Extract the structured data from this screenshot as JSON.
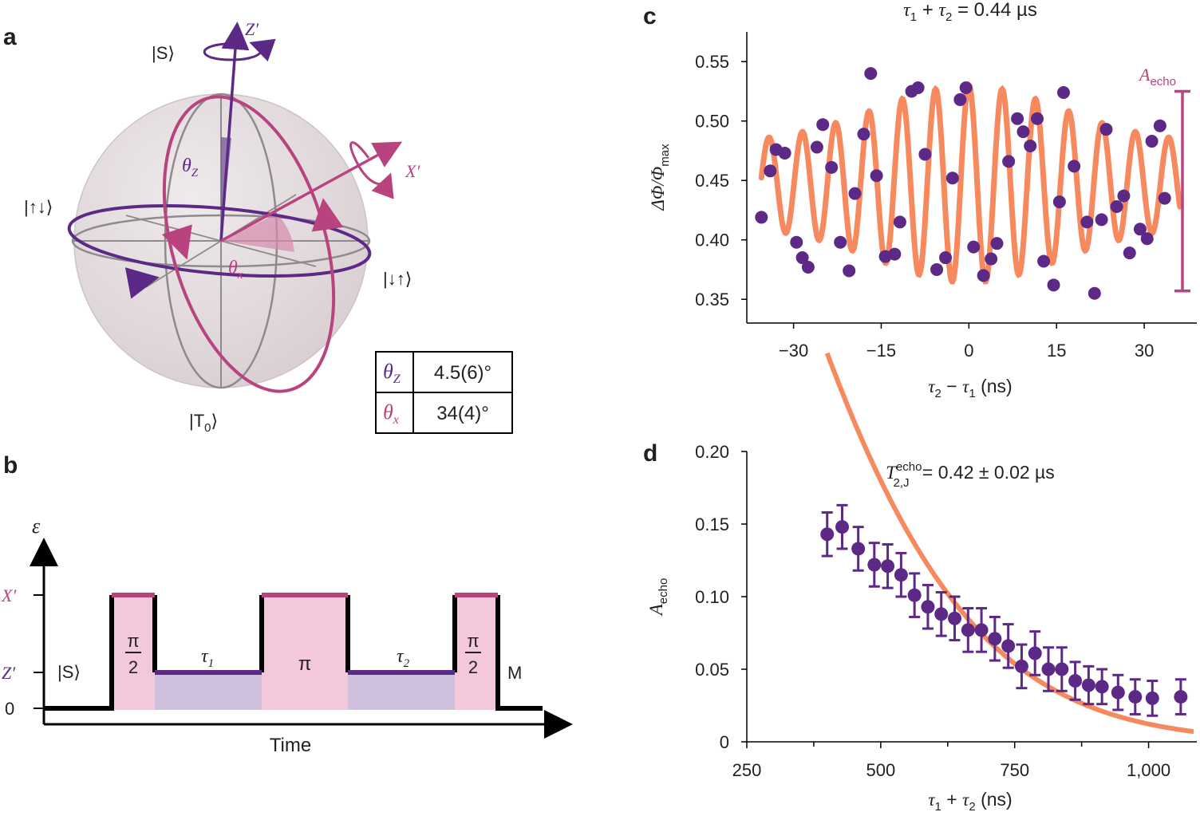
{
  "panels": {
    "a": "a",
    "b": "b",
    "c": "c",
    "d": "d"
  },
  "colors": {
    "purple": "#5c2a86",
    "magenta": "#b8437e",
    "orange": "#f7895e",
    "sphere": "#e2dadc",
    "pink_fill": "#f2c8da",
    "lilac_fill": "#cfc0dd"
  },
  "bloch": {
    "label_S": "|S⟩",
    "label_T0": "|T",
    "label_T0_sub": "0",
    "label_T0_end": "⟩",
    "label_updown": "|↑↓⟩",
    "label_downup": "|↓↑⟩",
    "axis_Z": "Z′",
    "axis_X": "X′",
    "theta_z_sym": "θ",
    "theta_z_sub": "Z",
    "theta_x_sym": "θ",
    "theta_x_sub": "x",
    "table": {
      "row1_sym": "θ",
      "row1_sub": "Z",
      "row1_value": "4.5(6)°",
      "row2_sym": "θ",
      "row2_sub": "x",
      "row2_value": "34(4)°"
    }
  },
  "pulse": {
    "ylabel": "ε",
    "xlabel": "Time",
    "level_X": "X′",
    "level_Z": "Z′",
    "level_0": "0",
    "init": "|S⟩",
    "measure": "M",
    "half_pi_num": "π",
    "half_pi_den": "2",
    "pi": "π",
    "tau1_sym": "τ",
    "tau1_sub": "1",
    "tau2_sym": "τ",
    "tau2_sub": "2"
  },
  "chart_data": [
    {
      "panel": "c",
      "type": "scatter",
      "title_parts": {
        "t1": "τ",
        "s1": "1",
        "plus": " + ",
        "t2": "τ",
        "s2": "2",
        "rest": " = 0.44 µs"
      },
      "xlabel_parts": {
        "t2": "τ",
        "s2": "2",
        "minus": " − ",
        "t1": "τ",
        "s1": "1",
        "unit": " (ns)"
      },
      "ylabel_parts": {
        "num": "ΔΦ/Φ",
        "sub": "max"
      },
      "xlim": [
        -38,
        39
      ],
      "ylim": [
        0.33,
        0.575
      ],
      "xticks": [
        -30,
        -15,
        0,
        15,
        30
      ],
      "xtick_labels": [
        "−30",
        "−15",
        "0",
        "15",
        "30"
      ],
      "yticks": [
        0.35,
        0.4,
        0.45,
        0.5,
        0.55
      ],
      "ytick_labels": [
        "0.35",
        "0.40",
        "0.45",
        "0.50",
        "0.55"
      ],
      "points": {
        "x": [
          -35.5,
          -34,
          -33,
          -31.5,
          -29.5,
          -28.5,
          -27.5,
          -26,
          -25,
          -23.5,
          -22,
          -20.5,
          -19.5,
          -18,
          -16.8,
          -15.8,
          -14.3,
          -12.7,
          -11.8,
          -9.8,
          -8.7,
          -7.5,
          -5.5,
          -4,
          -2.8,
          -1.5,
          -0.5,
          0.8,
          2.5,
          3.8,
          4.8,
          6.8,
          8.3,
          9.3,
          10.5,
          11.7,
          12.8,
          14.5,
          15.5,
          16.2,
          18,
          20.2,
          21.5,
          22.7,
          23.5,
          25.3,
          26.5,
          27.5,
          29.3,
          30.5,
          31.3,
          32.7,
          33.5
        ],
        "y": [
          0.419,
          0.458,
          0.476,
          0.473,
          0.398,
          0.385,
          0.377,
          0.478,
          0.497,
          0.461,
          0.398,
          0.374,
          0.439,
          0.489,
          0.54,
          0.454,
          0.386,
          0.388,
          0.415,
          0.525,
          0.528,
          0.472,
          0.375,
          0.385,
          0.452,
          0.518,
          0.528,
          0.394,
          0.37,
          0.384,
          0.397,
          0.466,
          0.502,
          0.491,
          0.479,
          0.502,
          0.382,
          0.362,
          0.432,
          0.524,
          0.462,
          0.415,
          0.355,
          0.417,
          0.493,
          0.428,
          0.437,
          0.389,
          0.409,
          0.401,
          0.483,
          0.496,
          0.435
        ]
      },
      "fit": {
        "offset": 0.447,
        "period_ns": 5.7,
        "amplitude_edge": 0.035,
        "amplitude_center": 0.083,
        "width_ns": 22
      },
      "annotation": {
        "sym": "A",
        "sub": "echo",
        "top": 0.525,
        "bottom": 0.357
      }
    },
    {
      "panel": "d",
      "type": "scatter",
      "annotation_parts": {
        "sym": "T",
        "sup": "echo",
        "sub": "2,J",
        "rest": " = 0.42 ± 0.02 µs"
      },
      "xlabel_parts": {
        "t1": "τ",
        "s1": "1",
        "plus": " + ",
        "t2": "τ",
        "s2": "2",
        "unit": " (ns)"
      },
      "ylabel_parts": {
        "sym": "A",
        "sub": "echo"
      },
      "xlim": [
        250,
        1090
      ],
      "ylim": [
        0,
        0.2
      ],
      "xticks": [
        250,
        500,
        750,
        1000
      ],
      "xtick_labels": [
        "250",
        "500",
        "750",
        "1,000"
      ],
      "minor_xticks": [
        375,
        625,
        875
      ],
      "yticks": [
        0,
        0.05,
        0.1,
        0.15,
        0.2
      ],
      "ytick_labels": [
        "0",
        "0.05",
        "0.10",
        "0.15",
        "0.20"
      ],
      "points": {
        "x": [
          400,
          428,
          458,
          488,
          513,
          538,
          563,
          588,
          613,
          638,
          663,
          688,
          713,
          738,
          763,
          788,
          813,
          838,
          863,
          888,
          913,
          943,
          975,
          1007,
          1060
        ],
        "y": [
          0.143,
          0.148,
          0.133,
          0.122,
          0.121,
          0.115,
          0.101,
          0.093,
          0.088,
          0.085,
          0.077,
          0.077,
          0.071,
          0.066,
          0.052,
          0.061,
          0.05,
          0.05,
          0.042,
          0.039,
          0.038,
          0.034,
          0.031,
          0.03,
          0.031
        ],
        "err": [
          0.015,
          0.015,
          0.015,
          0.015,
          0.015,
          0.015,
          0.015,
          0.015,
          0.015,
          0.015,
          0.015,
          0.015,
          0.015,
          0.015,
          0.015,
          0.015,
          0.015,
          0.015,
          0.013,
          0.013,
          0.012,
          0.012,
          0.012,
          0.012,
          0.012
        ]
      },
      "fit": {
        "A0": 0.675,
        "T2_ns": 420,
        "exponent": 1.6,
        "solid_from": 400
      }
    }
  ]
}
